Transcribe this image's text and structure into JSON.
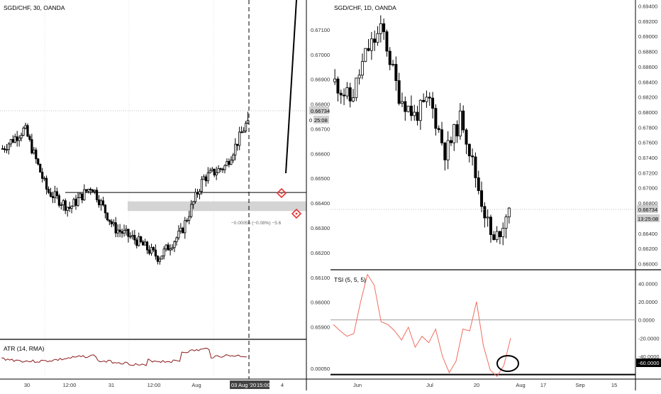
{
  "left_panel": {
    "title": "SGD/CHF, 30, OANDA",
    "indicator_label": "ATR (14, RMA)",
    "price_axis": [
      "0.67100",
      "0.67000",
      "0.66900",
      "0.66800",
      "0.66700",
      "0.66600",
      "0.66500",
      "0.66400",
      "0.66300",
      "0.66200",
      "0.66100",
      "0.66000",
      "0.65900"
    ],
    "price_axis_values": [
      0.671,
      0.67,
      0.669,
      0.668,
      0.667,
      0.666,
      0.665,
      0.664,
      0.663,
      0.662,
      0.661,
      0.66,
      0.659
    ],
    "last_price_label": "0.66734",
    "countdown_label": "25:08",
    "atr_axis_label": "0.00050",
    "time_axis": [
      "30",
      "12:00",
      "31",
      "12:00",
      "Aug",
      "4"
    ],
    "crosshair_time_label": "03 Aug '20",
    "crosshair_time_clock": "15:00",
    "measure_label": "−0.00056 (−0.08%) −5.6",
    "horizontal_level": 0.66443,
    "rectangle_zone": [
      0.66368,
      0.66407
    ],
    "colors": {
      "zone": "#cfcfcf",
      "atr_line": "#8b1a1a",
      "candle": "#000000",
      "marker": "#e53935"
    }
  },
  "right_panel": {
    "title": "SGD/CHF, 1D, OANDA",
    "indicator_label": "TSI (5, 5, 5)",
    "price_axis": [
      "0.69400",
      "0.69200",
      "0.69000",
      "0.68800",
      "0.68600",
      "0.68400",
      "0.68200",
      "0.68000",
      "0.67800",
      "0.67600",
      "0.67400",
      "0.67200",
      "0.67000",
      "0.66800",
      "0.66600",
      "0.66400",
      "0.66200",
      "0.66000"
    ],
    "price_axis_values": [
      0.694,
      0.692,
      0.69,
      0.688,
      0.686,
      0.684,
      0.682,
      0.68,
      0.678,
      0.676,
      0.674,
      0.672,
      0.67,
      0.668,
      0.666,
      0.664,
      0.662,
      0.66
    ],
    "last_price_label": "0.66734",
    "countdown_label": "13:25:08",
    "tsi_axis": [
      "40.0000",
      "20.0000",
      "0.0000",
      "-20.0000",
      "-40.0000",
      "-60.0000"
    ],
    "tsi_axis_values": [
      40,
      20,
      0,
      -20,
      -40,
      -60
    ],
    "tsi_level_label": "-60.0000",
    "time_axis": [
      "Jun",
      "Jul",
      "20",
      "Aug",
      "17",
      "Sep",
      "15"
    ],
    "colors": {
      "tsi_line": "#f06e60",
      "candle": "#000000"
    }
  },
  "chart_data": [
    {
      "type": "candlestick",
      "title": "SGD/CHF, 30, OANDA",
      "ylim": [
        0.6585,
        0.6722
      ],
      "x": [
        "30",
        "12:00",
        "31",
        "12:00",
        "Aug",
        "4"
      ],
      "approx_close_path": [
        {
          "t": "start",
          "price": 0.6662
        },
        {
          "t": "30 early",
          "price": 0.667
        },
        {
          "t": "30",
          "price": 0.6645
        },
        {
          "t": "30 late",
          "price": 0.6638
        },
        {
          "t": "12:00",
          "price": 0.6647
        },
        {
          "t": "31",
          "price": 0.663
        },
        {
          "t": "31 mid",
          "price": 0.6625
        },
        {
          "t": "12:00",
          "price": 0.6618
        },
        {
          "t": "31 close",
          "price": 0.6628
        },
        {
          "t": "Aug",
          "price": 0.665
        },
        {
          "t": "Aug mid",
          "price": 0.6655
        },
        {
          "t": "03 Aug 15:00",
          "price": 0.66734
        }
      ],
      "last": 0.66734,
      "atr": {
        "name": "ATR (14, RMA)",
        "value_label": "0.00050"
      }
    },
    {
      "type": "candlestick",
      "title": "SGD/CHF, 1D, OANDA",
      "ylim": [
        0.6592,
        0.6948
      ],
      "x": [
        "Jun",
        "Jul",
        "20",
        "Aug",
        "17",
        "Sep",
        "15"
      ],
      "approx_close_path": [
        {
          "t": "mid May",
          "price": 0.684
        },
        {
          "t": "late May",
          "price": 0.6815
        },
        {
          "t": "Jun",
          "price": 0.688
        },
        {
          "t": "early Jun",
          "price": 0.691
        },
        {
          "t": "mid Jun",
          "price": 0.6825
        },
        {
          "t": "late Jun",
          "price": 0.6795
        },
        {
          "t": "Jul",
          "price": 0.6815
        },
        {
          "t": "mid Jul",
          "price": 0.6745
        },
        {
          "t": "20",
          "price": 0.6795
        },
        {
          "t": "late Jul",
          "price": 0.6705
        },
        {
          "t": "Aug",
          "price": 0.6625
        },
        {
          "t": "Aug 3",
          "price": 0.66734
        }
      ],
      "last": 0.66734,
      "tsi": {
        "name": "TSI (5, 5, 5)",
        "ylim": [
          -65,
          52
        ],
        "values": [
          -5,
          -12,
          -18,
          -15,
          20,
          50,
          38,
          -2,
          -5,
          -12,
          -22,
          -8,
          -30,
          -18,
          -25,
          -10,
          -40,
          -58,
          -45,
          -10,
          -12,
          20,
          -28,
          -55,
          -62,
          -50,
          -20
        ]
      }
    }
  ]
}
